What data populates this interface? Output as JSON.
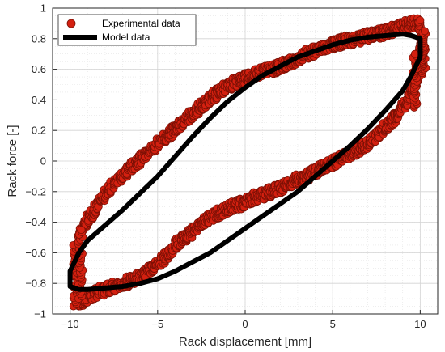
{
  "chart_data": {
    "type": "scatter",
    "title": "",
    "xlabel": "Rack displacement [mm]",
    "ylabel": "Rack force [-]",
    "xlim": [
      -11,
      11
    ],
    "ylim": [
      -1,
      1
    ],
    "xticks": [
      -10,
      -5,
      0,
      5,
      10
    ],
    "yticks": [
      -1,
      -0.8,
      -0.6,
      -0.4,
      -0.2,
      0,
      0.2,
      0.4,
      0.6,
      0.8,
      1
    ],
    "xtick_labels": [
      "−10",
      "−5",
      "0",
      "5",
      "10"
    ],
    "ytick_labels": [
      "−1",
      "−0.8",
      "−0.6",
      "−0.4",
      "−0.2",
      "0",
      "0.2",
      "0.4",
      "0.6",
      "0.8",
      "1"
    ],
    "grid": true,
    "legend_position": "top-left",
    "series": [
      {
        "name": "Experimental data",
        "style": "markers",
        "color": "#d42010",
        "edge_color": "#7a1005",
        "upper_branch": {
          "x": [
            -9.8,
            -9.5,
            -9,
            -8.5,
            -8,
            -7.5,
            -7,
            -6.5,
            -6,
            -5.5,
            -5,
            -4.5,
            -4,
            -3.5,
            -3,
            -2.5,
            -2,
            -1.5,
            -1,
            -0.5,
            0,
            0.5,
            1,
            1.5,
            2,
            2.5,
            3,
            3.5,
            4,
            4.5,
            5,
            5.5,
            6,
            6.5,
            7,
            7.5,
            8,
            8.5,
            9,
            9.5,
            10
          ],
          "y": [
            -0.72,
            -0.5,
            -0.38,
            -0.3,
            -0.22,
            -0.15,
            -0.1,
            -0.04,
            0.01,
            0.06,
            0.11,
            0.16,
            0.21,
            0.26,
            0.31,
            0.36,
            0.41,
            0.45,
            0.49,
            0.52,
            0.54,
            0.56,
            0.59,
            0.6,
            0.62,
            0.64,
            0.67,
            0.7,
            0.72,
            0.74,
            0.76,
            0.78,
            0.79,
            0.8,
            0.82,
            0.83,
            0.84,
            0.86,
            0.88,
            0.9,
            0.9
          ]
        },
        "lower_branch": {
          "x": [
            -9.5,
            -9,
            -8.5,
            -8,
            -7.5,
            -7,
            -6.5,
            -6,
            -5.5,
            -5,
            -4.5,
            -4,
            -3.5,
            -3,
            -2.5,
            -2,
            -1.5,
            -1,
            -0.5,
            0,
            0.5,
            1,
            1.5,
            2,
            2.5,
            3,
            3.5,
            4,
            4.5,
            5,
            5.5,
            6,
            6.5,
            7,
            7.5,
            8,
            8.5,
            9,
            9.5,
            10,
            10.2
          ],
          "y": [
            -0.92,
            -0.9,
            -0.86,
            -0.84,
            -0.82,
            -0.8,
            -0.78,
            -0.76,
            -0.72,
            -0.68,
            -0.62,
            -0.55,
            -0.5,
            -0.46,
            -0.41,
            -0.37,
            -0.34,
            -0.31,
            -0.29,
            -0.27,
            -0.24,
            -0.22,
            -0.2,
            -0.18,
            -0.15,
            -0.12,
            -0.1,
            -0.07,
            -0.04,
            -0.01,
            0.02,
            0.05,
            0.08,
            0.12,
            0.17,
            0.22,
            0.28,
            0.35,
            0.45,
            0.6,
            0.8
          ]
        }
      },
      {
        "name": "Model data",
        "style": "line",
        "color": "#000000",
        "upper_branch": {
          "x": [
            -10,
            -9.5,
            -9,
            -8,
            -7,
            -6,
            -5,
            -4,
            -3,
            -2,
            -1,
            0,
            1,
            2,
            3,
            4,
            5,
            6,
            7,
            8,
            9,
            9.5,
            10
          ],
          "y": [
            -0.72,
            -0.6,
            -0.52,
            -0.42,
            -0.32,
            -0.21,
            -0.1,
            0.03,
            0.16,
            0.28,
            0.39,
            0.48,
            0.56,
            0.62,
            0.68,
            0.72,
            0.76,
            0.79,
            0.81,
            0.82,
            0.83,
            0.82,
            0.8
          ]
        },
        "lower_branch": {
          "x": [
            -10,
            -9.5,
            -9,
            -8,
            -7,
            -6,
            -5,
            -4,
            -3,
            -2,
            -1,
            0,
            1,
            2,
            3,
            4,
            5,
            6,
            7,
            8,
            9,
            9.5,
            10
          ],
          "y": [
            -0.82,
            -0.84,
            -0.84,
            -0.83,
            -0.82,
            -0.8,
            -0.77,
            -0.72,
            -0.66,
            -0.6,
            -0.52,
            -0.44,
            -0.36,
            -0.28,
            -0.2,
            -0.1,
            0.0,
            0.1,
            0.21,
            0.33,
            0.46,
            0.56,
            0.68
          ]
        }
      }
    ]
  }
}
